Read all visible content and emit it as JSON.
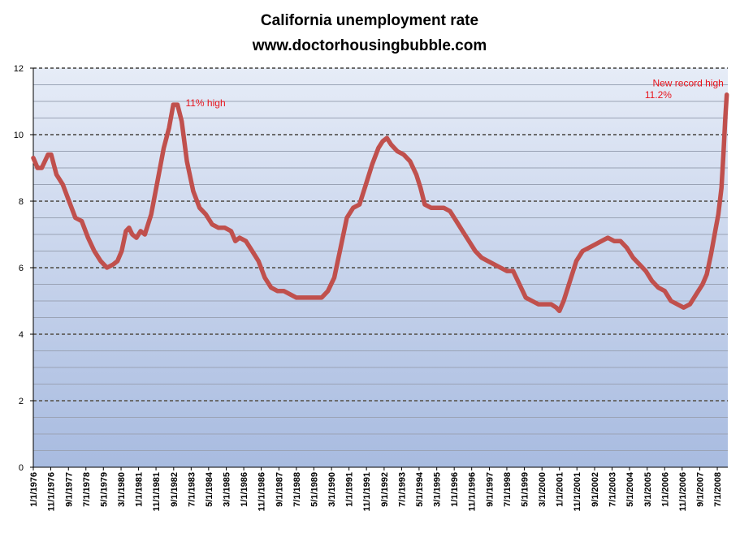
{
  "chart_data": {
    "type": "line",
    "title": "California unemployment rate",
    "subtitle": "www.doctorhousingbubble.com",
    "xlabel": "",
    "ylabel": "",
    "ylim": [
      0,
      12
    ],
    "y_ticks": [
      "0",
      "2",
      "4",
      "6",
      "8",
      "10",
      "12"
    ],
    "x_range": [
      1976.0,
      2009.0
    ],
    "x_tick_labels": [
      "1/1/1976",
      "11/1/1976",
      "9/1/1977",
      "7/1/1978",
      "5/1/1979",
      "3/1/1980",
      "1/1/1981",
      "11/1/1981",
      "9/1/1982",
      "7/1/1983",
      "5/1/1984",
      "3/1/1985",
      "1/1/1986",
      "11/1/1986",
      "9/1/1987",
      "7/1/1988",
      "5/1/1989",
      "3/1/1990",
      "1/1/1991",
      "11/1/1991",
      "9/1/1992",
      "7/1/1993",
      "5/1/1994",
      "3/1/1995",
      "1/1/1996",
      "11/1/1996",
      "9/1/1997",
      "7/1/1998",
      "5/1/1999",
      "3/1/2000",
      "1/1/2001",
      "11/1/2001",
      "9/1/2002",
      "7/1/2003",
      "5/1/2004",
      "3/1/2005",
      "1/1/2006",
      "11/1/2006",
      "9/1/2007",
      "7/1/2008"
    ],
    "x_tick_years": [
      1976.0,
      1976.83,
      1977.67,
      1978.5,
      1979.33,
      1980.17,
      1981.0,
      1981.83,
      1982.67,
      1983.5,
      1984.33,
      1985.17,
      1986.0,
      1986.83,
      1987.67,
      1988.5,
      1989.33,
      1990.17,
      1991.0,
      1991.83,
      1992.67,
      1993.5,
      1994.33,
      1995.17,
      1996.0,
      1996.83,
      1997.67,
      1998.5,
      1999.33,
      2000.17,
      2001.0,
      2001.83,
      2002.67,
      2003.5,
      2004.33,
      2005.17,
      2006.0,
      2006.83,
      2007.67,
      2008.5
    ],
    "grid": true,
    "series": [
      {
        "name": "California unemployment rate",
        "color": "#c0504d",
        "x": [
          1976.0,
          1976.2,
          1976.4,
          1976.7,
          1976.85,
          1977.1,
          1977.4,
          1977.7,
          1978.0,
          1978.3,
          1978.6,
          1978.9,
          1979.2,
          1979.5,
          1979.8,
          1980.0,
          1980.2,
          1980.4,
          1980.55,
          1980.7,
          1980.9,
          1981.1,
          1981.3,
          1981.6,
          1981.9,
          1982.2,
          1982.45,
          1982.65,
          1982.85,
          1983.05,
          1983.3,
          1983.6,
          1983.9,
          1984.2,
          1984.5,
          1984.8,
          1985.1,
          1985.4,
          1985.6,
          1985.8,
          1986.1,
          1986.4,
          1986.7,
          1987.0,
          1987.3,
          1987.6,
          1987.9,
          1988.2,
          1988.5,
          1988.8,
          1989.1,
          1989.4,
          1989.7,
          1990.0,
          1990.3,
          1990.6,
          1990.9,
          1991.2,
          1991.5,
          1991.8,
          1992.1,
          1992.4,
          1992.6,
          1992.8,
          1993.0,
          1993.3,
          1993.6,
          1993.9,
          1994.2,
          1994.4,
          1994.6,
          1994.9,
          1995.2,
          1995.5,
          1995.8,
          1996.1,
          1996.4,
          1996.7,
          1997.0,
          1997.3,
          1997.6,
          1997.9,
          1998.2,
          1998.5,
          1998.8,
          1999.1,
          1999.4,
          1999.7,
          2000.0,
          2000.3,
          2000.6,
          2000.85,
          2001.0,
          2001.2,
          2001.5,
          2001.8,
          2002.1,
          2002.4,
          2002.7,
          2003.0,
          2003.3,
          2003.6,
          2003.9,
          2004.2,
          2004.5,
          2004.8,
          2005.1,
          2005.4,
          2005.7,
          2006.0,
          2006.3,
          2006.6,
          2006.9,
          2007.2,
          2007.5,
          2007.8,
          2008.0,
          2008.2,
          2008.4,
          2008.55,
          2008.7,
          2008.8,
          2008.88,
          2008.95
        ],
        "values": [
          9.3,
          9.0,
          9.0,
          9.4,
          9.4,
          8.8,
          8.5,
          8.0,
          7.5,
          7.4,
          6.9,
          6.5,
          6.2,
          6.0,
          6.1,
          6.2,
          6.5,
          7.1,
          7.2,
          7.0,
          6.9,
          7.1,
          7.0,
          7.6,
          8.6,
          9.6,
          10.2,
          10.9,
          10.9,
          10.4,
          9.2,
          8.3,
          7.8,
          7.6,
          7.3,
          7.2,
          7.2,
          7.1,
          6.8,
          6.9,
          6.8,
          6.5,
          6.2,
          5.7,
          5.4,
          5.3,
          5.3,
          5.2,
          5.1,
          5.1,
          5.1,
          5.1,
          5.1,
          5.3,
          5.7,
          6.6,
          7.5,
          7.8,
          7.9,
          8.5,
          9.1,
          9.6,
          9.8,
          9.9,
          9.7,
          9.5,
          9.4,
          9.2,
          8.8,
          8.4,
          7.9,
          7.8,
          7.8,
          7.8,
          7.7,
          7.4,
          7.1,
          6.8,
          6.5,
          6.3,
          6.2,
          6.1,
          6.0,
          5.9,
          5.9,
          5.5,
          5.1,
          5.0,
          4.9,
          4.9,
          4.9,
          4.8,
          4.7,
          5.0,
          5.6,
          6.2,
          6.5,
          6.6,
          6.7,
          6.8,
          6.9,
          6.8,
          6.8,
          6.6,
          6.3,
          6.1,
          5.9,
          5.6,
          5.4,
          5.3,
          5.0,
          4.9,
          4.8,
          4.9,
          5.2,
          5.5,
          5.8,
          6.4,
          7.1,
          7.6,
          8.4,
          9.5,
          10.5,
          11.2
        ]
      }
    ],
    "annotations": [
      {
        "text": "11% high",
        "x": 1982.85,
        "y": 10.95
      },
      {
        "text": "New record high",
        "x": 2008.8,
        "y": 11.5
      },
      {
        "text": "11.2%",
        "x": 2008.8,
        "y": 11.15
      }
    ]
  }
}
